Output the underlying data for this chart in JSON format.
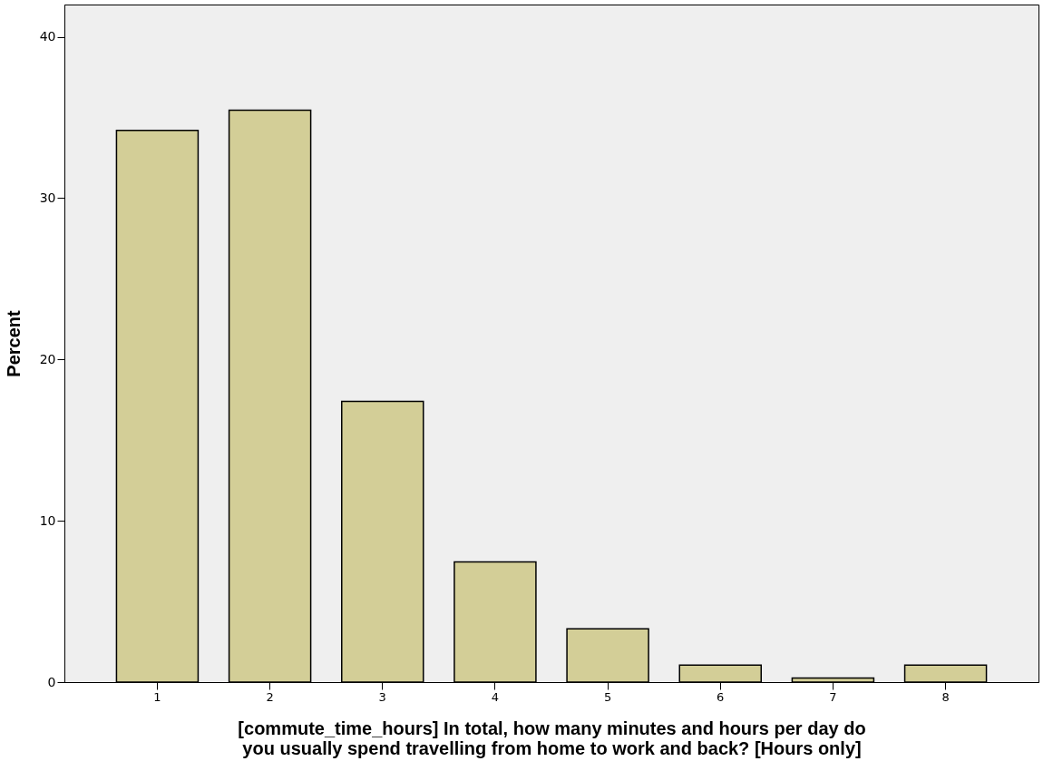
{
  "chart_data": {
    "type": "bar",
    "categories": [
      "1",
      "2",
      "3",
      "4",
      "5",
      "6",
      "7",
      "8"
    ],
    "values": [
      34.2,
      35.45,
      17.4,
      7.45,
      3.3,
      1.05,
      0.25,
      1.05
    ],
    "color": "#d3ce97",
    "xlabel": "[commute_time_hours] In total, how many minutes and hours per day do you usually spend travelling from home to work and back? [Hours only]",
    "ylabel": "Percent",
    "ylim": [
      0,
      42
    ],
    "yticks": [
      0,
      10,
      20,
      30,
      40
    ],
    "grid": false
  }
}
